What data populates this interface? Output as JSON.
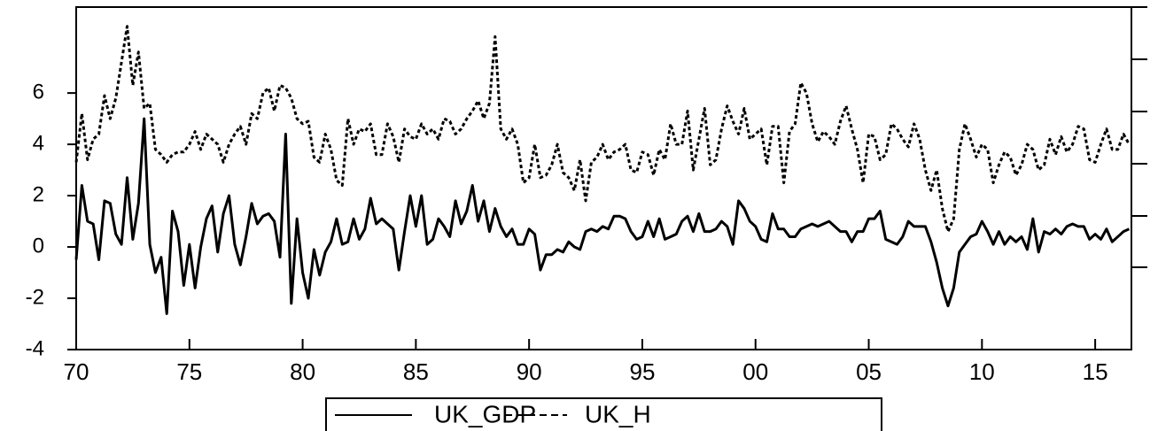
{
  "chart_data": {
    "type": "line",
    "x": [
      1970,
      1970.25,
      1970.5,
      1970.75,
      1971,
      1971.25,
      1971.5,
      1971.75,
      1972,
      1972.25,
      1972.5,
      1972.75,
      1973,
      1973.25,
      1973.5,
      1973.75,
      1974,
      1974.25,
      1974.5,
      1974.75,
      1975,
      1975.25,
      1975.5,
      1975.75,
      1976,
      1976.25,
      1976.5,
      1976.75,
      1977,
      1977.25,
      1977.5,
      1977.75,
      1978,
      1978.25,
      1978.5,
      1978.75,
      1979,
      1979.25,
      1979.5,
      1979.75,
      1980,
      1980.25,
      1980.5,
      1980.75,
      1981,
      1981.25,
      1981.5,
      1981.75,
      1982,
      1982.25,
      1982.5,
      1982.75,
      1983,
      1983.25,
      1983.5,
      1983.75,
      1984,
      1984.25,
      1984.5,
      1984.75,
      1985,
      1985.25,
      1985.5,
      1985.75,
      1986,
      1986.25,
      1986.5,
      1986.75,
      1987,
      1987.25,
      1987.5,
      1987.75,
      1988,
      1988.25,
      1988.5,
      1988.75,
      1989,
      1989.25,
      1989.5,
      1989.75,
      1990,
      1990.25,
      1990.5,
      1990.75,
      1991,
      1991.25,
      1991.5,
      1991.75,
      1992,
      1992.25,
      1992.5,
      1992.75,
      1993,
      1993.25,
      1993.5,
      1993.75,
      1994,
      1994.25,
      1994.5,
      1994.75,
      1995,
      1995.25,
      1995.5,
      1995.75,
      1996,
      1996.25,
      1996.5,
      1996.75,
      1997,
      1997.25,
      1997.5,
      1997.75,
      1998,
      1998.25,
      1998.5,
      1998.75,
      1999,
      1999.25,
      1999.5,
      1999.75,
      2000,
      2000.25,
      2000.5,
      2000.75,
      2001,
      2001.25,
      2001.5,
      2001.75,
      2002,
      2002.25,
      2002.5,
      2002.75,
      2003,
      2003.25,
      2003.5,
      2003.75,
      2004,
      2004.25,
      2004.5,
      2004.75,
      2005,
      2005.25,
      2005.5,
      2005.75,
      2006,
      2006.25,
      2006.5,
      2006.75,
      2007,
      2007.25,
      2007.5,
      2007.75,
      2008,
      2008.25,
      2008.5,
      2008.75,
      2009,
      2009.25,
      2009.5,
      2009.75,
      2010,
      2010.25,
      2010.5,
      2010.75,
      2011,
      2011.25,
      2011.5,
      2011.75,
      2012,
      2012.25,
      2012.5,
      2012.75,
      2013,
      2013.25,
      2013.5,
      2013.75,
      2014,
      2014.25,
      2014.5,
      2014.75,
      2015,
      2015.25,
      2015.5,
      2015.75,
      2016,
      2016.25,
      2016.5
    ],
    "series": [
      {
        "name": "UK_GDP",
        "color": "#000000",
        "dashed": false,
        "values": [
          -0.5,
          2.4,
          1.0,
          0.9,
          -0.5,
          1.8,
          1.7,
          0.5,
          0.1,
          2.7,
          0.3,
          1.7,
          5.0,
          0.1,
          -1.0,
          -0.4,
          -2.6,
          1.4,
          0.6,
          -1.5,
          0.1,
          -1.6,
          0.0,
          1.1,
          1.6,
          -0.2,
          1.3,
          2.0,
          0.1,
          -0.7,
          0.4,
          1.7,
          0.9,
          1.2,
          1.3,
          1.0,
          -0.4,
          4.4,
          -2.2,
          1.1,
          -1.0,
          -2.0,
          -0.1,
          -1.1,
          -0.2,
          0.2,
          1.1,
          0.1,
          0.2,
          1.1,
          0.3,
          0.7,
          1.9,
          0.9,
          1.1,
          0.9,
          0.7,
          -0.9,
          0.6,
          2.0,
          0.8,
          2.0,
          0.1,
          0.3,
          1.1,
          0.8,
          0.4,
          1.8,
          0.9,
          1.4,
          2.4,
          1.0,
          1.8,
          0.6,
          1.5,
          0.8,
          0.4,
          0.7,
          0.1,
          0.1,
          0.7,
          0.5,
          -0.9,
          -0.3,
          -0.3,
          -0.1,
          -0.2,
          0.2,
          0.0,
          -0.1,
          0.6,
          0.7,
          0.6,
          0.8,
          0.7,
          1.2,
          1.2,
          1.1,
          0.6,
          0.3,
          0.4,
          1.0,
          0.4,
          1.1,
          0.3,
          0.4,
          0.5,
          1.0,
          1.2,
          0.6,
          1.3,
          0.6,
          0.6,
          0.7,
          1.0,
          0.8,
          0.1,
          1.8,
          1.5,
          1.0,
          0.8,
          0.3,
          0.2,
          1.3,
          0.7,
          0.7,
          0.4,
          0.4,
          0.7,
          0.8,
          0.9,
          0.8,
          0.9,
          1.0,
          0.8,
          0.6,
          0.6,
          0.2,
          0.6,
          0.6,
          1.1,
          1.1,
          1.4,
          0.3,
          0.2,
          0.1,
          0.4,
          1.0,
          0.8,
          0.8,
          0.8,
          0.2,
          -0.6,
          -1.6,
          -2.3,
          -1.6,
          -0.2,
          0.1,
          0.4,
          0.5,
          1.0,
          0.6,
          0.1,
          0.6,
          0.1,
          0.4,
          0.2,
          0.4,
          -0.1,
          1.1,
          -0.2,
          0.6,
          0.5,
          0.7,
          0.5,
          0.8,
          0.9,
          0.8,
          0.8,
          0.3,
          0.5,
          0.3,
          0.7,
          0.2,
          0.4,
          0.6,
          0.7
        ]
      },
      {
        "name": "UK_H",
        "color": "#000000",
        "dashed": true,
        "values": [
          3.3,
          5.2,
          3.4,
          4.2,
          4.4,
          5.9,
          5.0,
          5.8,
          7.2,
          8.6,
          6.3,
          7.6,
          5.4,
          5.6,
          3.8,
          3.6,
          3.3,
          3.6,
          3.7,
          3.7,
          4.0,
          4.5,
          3.8,
          4.4,
          4.2,
          4.0,
          3.3,
          4.0,
          4.4,
          4.7,
          4.0,
          5.2,
          5.0,
          6.0,
          6.2,
          5.3,
          6.3,
          6.2,
          5.8,
          5.0,
          4.8,
          4.9,
          3.5,
          3.3,
          4.4,
          3.8,
          2.6,
          2.4,
          5.0,
          4.0,
          4.6,
          4.5,
          4.8,
          3.6,
          3.6,
          4.8,
          4.3,
          3.3,
          4.6,
          4.3,
          4.2,
          4.8,
          4.4,
          4.6,
          4.2,
          5.0,
          4.9,
          4.4,
          4.6,
          5.0,
          5.3,
          5.7,
          5.0,
          5.6,
          8.2,
          4.6,
          4.2,
          4.6,
          4.0,
          2.5,
          2.7,
          4.0,
          2.7,
          2.8,
          3.2,
          4.0,
          2.9,
          2.7,
          2.2,
          3.4,
          1.8,
          3.3,
          3.5,
          4.0,
          3.4,
          3.7,
          3.8,
          4.0,
          3.0,
          2.9,
          3.7,
          3.6,
          2.8,
          3.8,
          3.4,
          4.8,
          4.0,
          4.0,
          5.3,
          3.0,
          4.2,
          5.4,
          3.2,
          3.4,
          4.6,
          5.5,
          4.9,
          4.4,
          5.4,
          4.2,
          4.4,
          4.6,
          3.2,
          4.7,
          4.7,
          2.5,
          4.5,
          4.8,
          6.4,
          6.0,
          4.8,
          4.1,
          4.5,
          4.3,
          4.0,
          4.9,
          5.5,
          4.6,
          3.8,
          2.5,
          4.4,
          4.3,
          3.4,
          3.6,
          4.8,
          4.6,
          4.2,
          3.9,
          4.8,
          4.2,
          3.0,
          2.2,
          3.0,
          1.5,
          0.6,
          1.1,
          3.8,
          4.8,
          4.2,
          3.5,
          4.0,
          3.8,
          2.5,
          3.2,
          3.7,
          3.5,
          2.8,
          3.2,
          4.0,
          3.8,
          3.0,
          3.2,
          4.2,
          3.6,
          4.3,
          3.7,
          4.0,
          4.7,
          4.6,
          3.4,
          3.3,
          4.0,
          4.6,
          3.8,
          3.8,
          4.4,
          4.0
        ]
      }
    ],
    "xlim": [
      1970,
      2016.6
    ],
    "xticks": [
      {
        "value": 1970,
        "label": "70"
      },
      {
        "value": 1975,
        "label": "75"
      },
      {
        "value": 1980,
        "label": "80"
      },
      {
        "value": 1985,
        "label": "85"
      },
      {
        "value": 1990,
        "label": "90"
      },
      {
        "value": 1995,
        "label": "95"
      },
      {
        "value": 2000,
        "label": "00"
      },
      {
        "value": 2005,
        "label": "05"
      },
      {
        "value": 2010,
        "label": "10"
      },
      {
        "value": 2015,
        "label": "15"
      }
    ],
    "ylim": [
      -4,
      9.35
    ],
    "yticks": [
      -4,
      -2,
      0,
      2,
      4,
      6
    ]
  }
}
